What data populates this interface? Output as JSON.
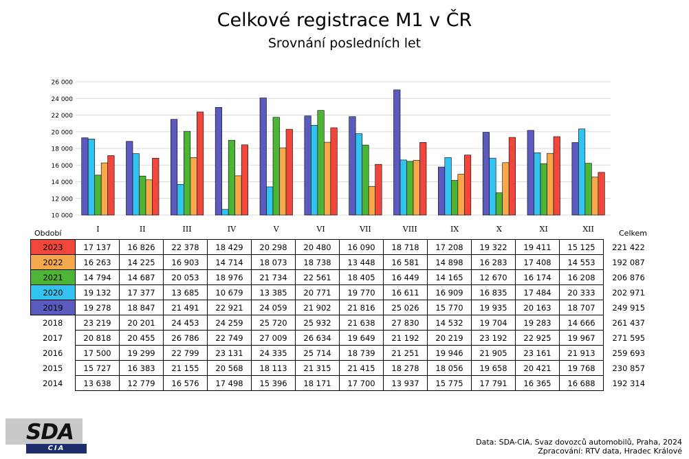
{
  "title": "Celkové registrace M1 v ČR",
  "subtitle": "Srovnání posledních let",
  "period_label": "Období",
  "total_label": "Celkem",
  "source_line1": "Data: SDA-CIA, Svaz dovozců automobilů, Praha, 2024",
  "source_line2": "Zpracování: RTV data, Hradec Králové",
  "logo": {
    "text": "SDA",
    "subtext": "CIA"
  },
  "chart_data": {
    "type": "bar",
    "title": "Celkové registrace M1 v ČR",
    "subtitle": "Srovnání posledních let",
    "categories": [
      "I",
      "II",
      "III",
      "IV",
      "V",
      "VI",
      "VII",
      "VIII",
      "IX",
      "X",
      "XI",
      "XII"
    ],
    "ylim": [
      10000,
      26000
    ],
    "yticks": [
      "10 000",
      "12 000",
      "14 000",
      "16 000",
      "18 000",
      "20 000",
      "22 000",
      "24 000",
      "26 000"
    ],
    "grid": true,
    "series": [
      {
        "name": "2019",
        "color": "#5b5bbf",
        "values": [
          19278,
          18847,
          21491,
          22921,
          24059,
          21902,
          21816,
          25026,
          15770,
          19935,
          20163,
          18707
        ]
      },
      {
        "name": "2020",
        "color": "#33c3f0",
        "values": [
          19132,
          17377,
          13685,
          10679,
          13385,
          20771,
          19770,
          16611,
          16909,
          16835,
          17484,
          20333
        ]
      },
      {
        "name": "2021",
        "color": "#4cb536",
        "values": [
          14794,
          14687,
          20053,
          18976,
          21734,
          22561,
          18405,
          16449,
          14165,
          12670,
          16174,
          16208
        ]
      },
      {
        "name": "2022",
        "color": "#f6a84a",
        "values": [
          16263,
          14225,
          16903,
          14714,
          18073,
          18738,
          13448,
          16581,
          14898,
          16283,
          17408,
          14553
        ]
      },
      {
        "name": "2023",
        "color": "#f0463c",
        "values": [
          17137,
          16826,
          22378,
          18429,
          20298,
          20480,
          16090,
          18718,
          17208,
          19322,
          19411,
          15125
        ]
      }
    ]
  },
  "table": {
    "rows": [
      {
        "year": "2023",
        "color": "#f0463c",
        "values": [
          "17 137",
          "16 826",
          "22 378",
          "18 429",
          "20 298",
          "20 480",
          "16 090",
          "18 718",
          "17 208",
          "19 322",
          "19 411",
          "15 125"
        ],
        "total": "221 422"
      },
      {
        "year": "2022",
        "color": "#f6a84a",
        "values": [
          "16 263",
          "14 225",
          "16 903",
          "14 714",
          "18 073",
          "18 738",
          "13 448",
          "16 581",
          "14 898",
          "16 283",
          "17 408",
          "14 553"
        ],
        "total": "192 087"
      },
      {
        "year": "2021",
        "color": "#4cb536",
        "values": [
          "14 794",
          "14 687",
          "20 053",
          "18 976",
          "21 734",
          "22 561",
          "18 405",
          "16 449",
          "14 165",
          "12 670",
          "16 174",
          "16 208"
        ],
        "total": "206 876"
      },
      {
        "year": "2020",
        "color": "#33c3f0",
        "values": [
          "19 132",
          "17 377",
          "13 685",
          "10 679",
          "13 385",
          "20 771",
          "19 770",
          "16 611",
          "16 909",
          "16 835",
          "17 484",
          "20 333"
        ],
        "total": "202 971"
      },
      {
        "year": "2019",
        "color": "#5b5bbf",
        "values": [
          "19 278",
          "18 847",
          "21 491",
          "22 921",
          "24 059",
          "21 902",
          "21 816",
          "25 026",
          "15 770",
          "19 935",
          "20 163",
          "18 707"
        ],
        "total": "249 915"
      },
      {
        "year": "2018",
        "color": "",
        "values": [
          "23 219",
          "20 201",
          "24 453",
          "24 259",
          "25 720",
          "25 932",
          "21 638",
          "27 830",
          "14 532",
          "19 704",
          "19 283",
          "14 666"
        ],
        "total": "261 437"
      },
      {
        "year": "2017",
        "color": "",
        "values": [
          "20 818",
          "20 455",
          "26 786",
          "22 749",
          "27 009",
          "26 634",
          "19 649",
          "21 192",
          "20 219",
          "23 192",
          "22 925",
          "19 967"
        ],
        "total": "271 595"
      },
      {
        "year": "2016",
        "color": "",
        "values": [
          "17 500",
          "19 299",
          "22 799",
          "23 131",
          "24 335",
          "25 714",
          "18 739",
          "21 251",
          "19 946",
          "21 905",
          "23 161",
          "21 913"
        ],
        "total": "259 693"
      },
      {
        "year": "2015",
        "color": "",
        "values": [
          "15 727",
          "16 383",
          "21 155",
          "20 568",
          "18 113",
          "21 315",
          "21 415",
          "18 278",
          "18 056",
          "19 658",
          "20 421",
          "19 768"
        ],
        "total": "230 857"
      },
      {
        "year": "2014",
        "color": "",
        "values": [
          "13 638",
          "12 779",
          "16 576",
          "17 498",
          "15 396",
          "18 171",
          "17 700",
          "13 937",
          "15 775",
          "17 791",
          "16 365",
          "16 688"
        ],
        "total": "192 314"
      }
    ]
  }
}
